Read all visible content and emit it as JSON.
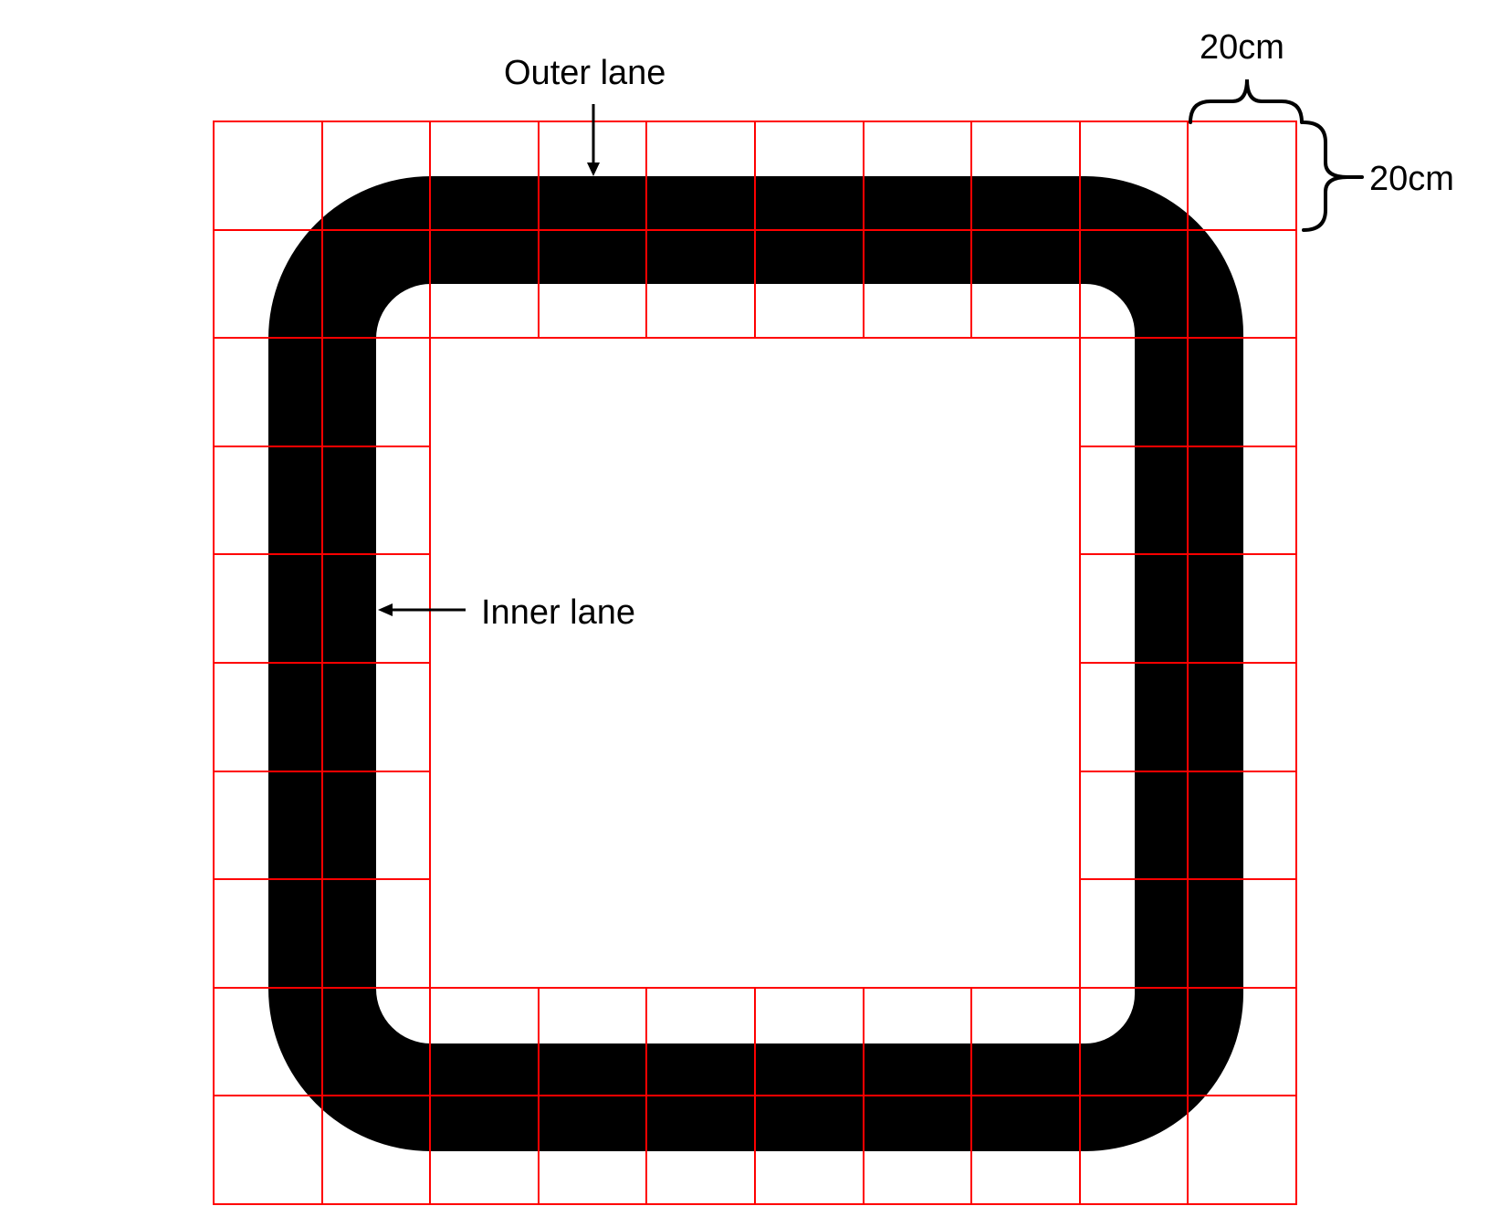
{
  "labels": {
    "outer_lane": "Outer lane",
    "inner_lane": "Inner lane",
    "dimension_width": "20cm",
    "dimension_height": "20cm"
  },
  "colors": {
    "grid": "#ff0000",
    "track": "#000000",
    "annotation": "#000000",
    "background": "#ffffff"
  }
}
